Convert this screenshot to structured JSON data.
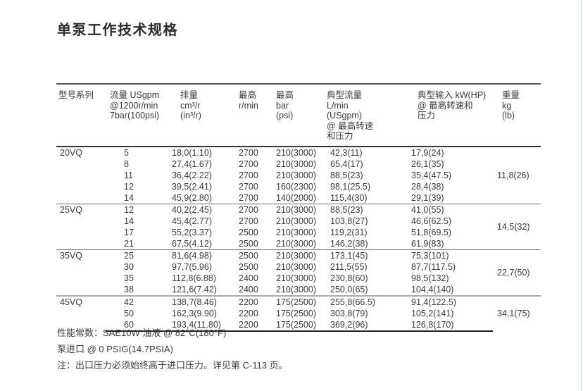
{
  "page": {
    "title": "单泵工作技术规格"
  },
  "table": {
    "headers": {
      "model": "型号系列",
      "flow": [
        "流量 USgpm",
        "@1200r/min",
        "7bar(100psi)"
      ],
      "displacement": [
        "排量",
        "cm³/r",
        "(in³/r)"
      ],
      "max_speed": [
        "最高",
        "r/min"
      ],
      "max_pressure": [
        "最高",
        "bar",
        "(psi)"
      ],
      "typical_flow": [
        "典型流量",
        "L/min",
        "(USgpm)",
        "@ 最高转速",
        "和压力"
      ],
      "typical_input": [
        "典型输入 kW(HP)",
        "@ 最高转速和",
        "压力"
      ],
      "weight": [
        "重量",
        "kg",
        "(lb)"
      ]
    },
    "groups": [
      {
        "model": "20VQ",
        "weight": "11,8(26)",
        "rows": [
          [
            "5",
            "18,0(1.10)",
            "2700",
            "210(3000)",
            "42,3(11)",
            "17,9(24)"
          ],
          [
            "8",
            "27,4(1.67)",
            "2700",
            "210(3000)",
            "65,4(17)",
            "26,1(35)"
          ],
          [
            "11",
            "36,4(2.22)",
            "2700",
            "210(3000)",
            "88,5(23)",
            "35,4(47.5)"
          ],
          [
            "12",
            "39,5(2.41)",
            "2700",
            "160(2300)",
            "98,1(25.5)",
            "28,4(38)"
          ],
          [
            "14",
            "45,9(2.80)",
            "2700",
            "140(2000)",
            "115,4(30)",
            "29,1(39)"
          ]
        ]
      },
      {
        "model": "25VQ",
        "weight": "14,5(32)",
        "rows": [
          [
            "12",
            "40,2(2.45)",
            "2700",
            "210(3000)",
            "88,5(23)",
            "41,0(55)"
          ],
          [
            "14",
            "45,4(2.77)",
            "2700",
            "210(3000)",
            "103,8(27)",
            "46,6(62.5)"
          ],
          [
            "17",
            "55,2(3.37)",
            "2500",
            "210(3000)",
            "119,2(31)",
            "51,8(69.5)"
          ],
          [
            "21",
            "67,5(4.12)",
            "2500",
            "210(3000)",
            "146,2(38)",
            "61,9(83)"
          ]
        ]
      },
      {
        "model": "35VQ",
        "weight": "22,7(50)",
        "rows": [
          [
            "25",
            "81,6(4.98)",
            "2500",
            "210(3000)",
            "173,1(45)",
            "75,3(101)"
          ],
          [
            "30",
            "97,7(5.96)",
            "2500",
            "210(3000)",
            "211,5(55)",
            "87,7(117.5)"
          ],
          [
            "35",
            "112,8(6.88)",
            "2400",
            "210(3000)",
            "230,8(60)",
            "98,5(132)"
          ],
          [
            "38",
            "121,6(7.42)",
            "2400",
            "210(3000)",
            "250,0(65)",
            "104,4(140)"
          ]
        ]
      },
      {
        "model": "45VQ",
        "weight": "34,1(75)",
        "rows": [
          [
            "42",
            "138,7(8.46)",
            "2200",
            "175(2500)",
            "255,8(66.5)",
            "91,4(122.5)"
          ],
          [
            "50",
            "162,3(9.90)",
            "2200",
            "175(2500)",
            "303,8(79)",
            "105,2(141)"
          ],
          [
            "60",
            "193,4(11.80)",
            "2200",
            "175(2500)",
            "369,2(96)",
            "126,8(170)"
          ]
        ]
      }
    ]
  },
  "notes": [
    "性能常数：SAE10W 油液 @ 82°C(180°F)",
    "泵进口 @ 0 PSIG(14.7PSIA)",
    "注：出口压力必须始终高于进口压力。详见第 C-113 页。"
  ]
}
